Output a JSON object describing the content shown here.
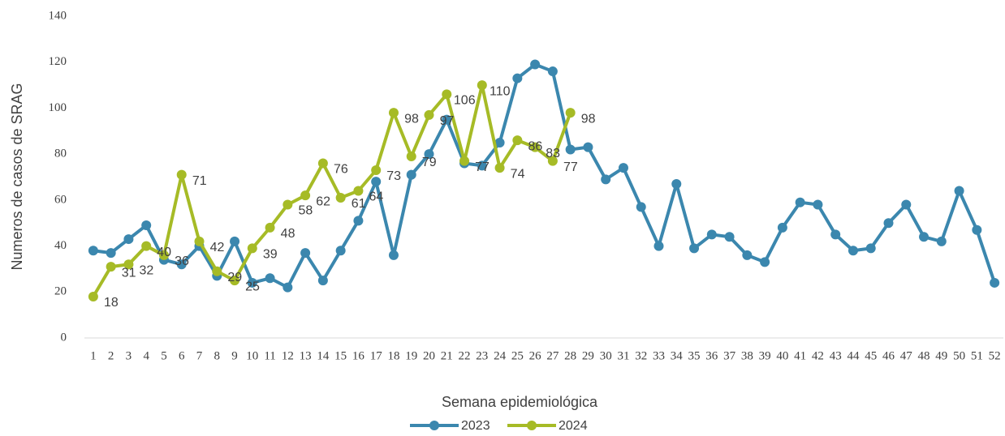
{
  "chart_data": {
    "type": "line",
    "x_label": "Semana epidemiológica",
    "y_label": "Numeros de casos de SRAG",
    "categories": [
      "1",
      "2",
      "3",
      "4",
      "5",
      "6",
      "7",
      "8",
      "9",
      "10",
      "11",
      "12",
      "13",
      "14",
      "15",
      "16",
      "17",
      "18",
      "19",
      "20",
      "21",
      "22",
      "23",
      "24",
      "25",
      "26",
      "27",
      "28",
      "29",
      "30",
      "31",
      "32",
      "33",
      "34",
      "35",
      "36",
      "37",
      "38",
      "39",
      "40",
      "41",
      "42",
      "43",
      "44",
      "45",
      "46",
      "47",
      "48",
      "49",
      "50",
      "51",
      "52"
    ],
    "series": [
      {
        "name": "2023",
        "color": "#3b87ae",
        "values": [
          38,
          37,
          43,
          49,
          34,
          32,
          40,
          27,
          42,
          24,
          26,
          22,
          37,
          25,
          38,
          51,
          68,
          36,
          71,
          80,
          95,
          76,
          75,
          85,
          113,
          119,
          116,
          82,
          83,
          69,
          74,
          57,
          40,
          67,
          39,
          45,
          44,
          36,
          33,
          48,
          59,
          58,
          45,
          38,
          39,
          50,
          58,
          44,
          42,
          64,
          47,
          24
        ]
      },
      {
        "name": "2024",
        "color": "#a6bb26",
        "show_labels": true,
        "values": [
          18,
          31,
          32,
          40,
          36,
          71,
          42,
          29,
          25,
          39,
          48,
          58,
          62,
          76,
          61,
          64,
          73,
          98,
          79,
          97,
          106,
          77,
          110,
          74,
          86,
          83,
          77,
          98,
          null,
          null,
          null,
          null,
          null,
          null,
          null,
          null,
          null,
          null,
          null,
          null,
          null,
          null,
          null,
          null,
          null,
          null,
          null,
          null,
          null,
          null,
          null,
          null
        ]
      }
    ],
    "ylim": [
      0,
      140
    ],
    "yticks": [
      0,
      20,
      40,
      60,
      80,
      100,
      120,
      140
    ],
    "grid": false,
    "legend": "bottom"
  }
}
